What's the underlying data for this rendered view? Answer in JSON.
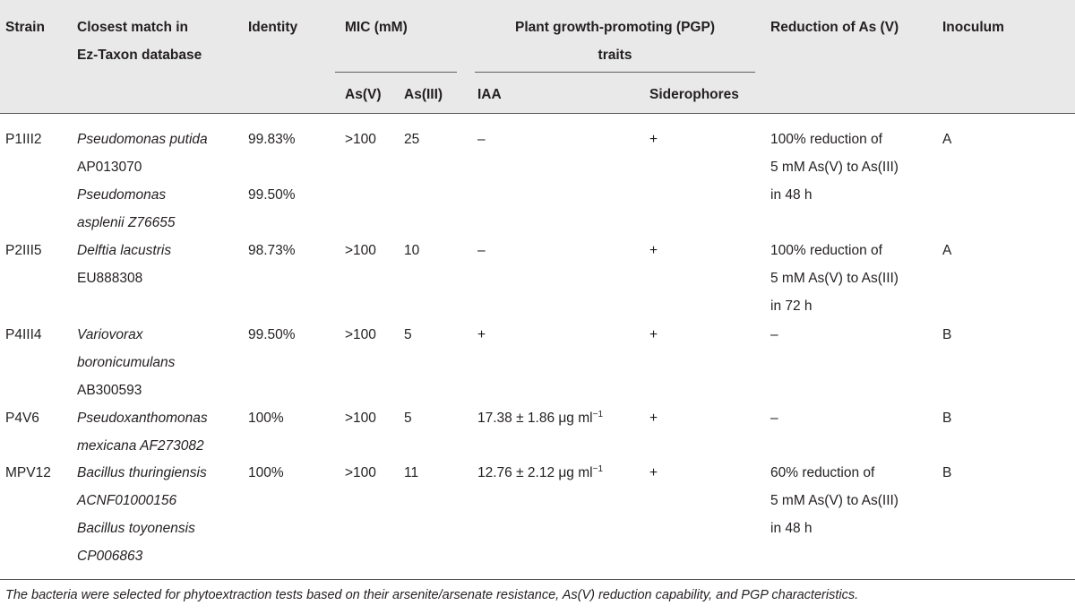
{
  "headers": {
    "strain": "Strain",
    "closest_match_l1": "Closest match in",
    "closest_match_l2": "Ez-Taxon database",
    "identity": "Identity",
    "mic": "MIC (mM)",
    "mic_asv": "As(V)",
    "mic_asiii": "As(III)",
    "pgp_l1": "Plant growth-promoting (PGP)",
    "pgp_l2": "traits",
    "iaa": "IAA",
    "siderophores": "Siderophores",
    "reduction": "Reduction of As (V)",
    "inoculum": "Inoculum"
  },
  "rows": [
    {
      "strain": "P1III2",
      "match_lines": [
        "Pseudomonas putida",
        "AP013070",
        "Pseudomonas",
        "asplenii Z76655"
      ],
      "identity_lines": [
        "99.83%",
        "",
        "99.50%"
      ],
      "asv": ">100",
      "asiii": "25",
      "iaa": "–",
      "iaa_unit": "",
      "iaa_sup": "",
      "siderophores": "+",
      "reduction_lines": [
        "100% reduction of",
        "5 mM As(V) to As(III)",
        "in 48 h"
      ],
      "inoculum": "A"
    },
    {
      "strain": "P2III5",
      "match_lines": [
        "Delftia lacustris",
        "EU888308"
      ],
      "identity_lines": [
        "98.73%"
      ],
      "asv": ">100",
      "asiii": "10",
      "iaa": "–",
      "iaa_unit": "",
      "iaa_sup": "",
      "siderophores": "+",
      "reduction_lines": [
        "100% reduction of",
        "5 mM As(V) to As(III)",
        "in 72 h"
      ],
      "inoculum": "A"
    },
    {
      "strain": "P4III4",
      "match_lines": [
        "Variovorax",
        "boronicumulans",
        "AB300593"
      ],
      "identity_lines": [
        "99.50%"
      ],
      "asv": ">100",
      "asiii": "5",
      "iaa": "+",
      "iaa_unit": "",
      "iaa_sup": "",
      "siderophores": "+",
      "reduction_lines": [
        "–"
      ],
      "inoculum": "B"
    },
    {
      "strain": "P4V6",
      "match_lines": [
        "Pseudoxanthomonas",
        "mexicana AF273082"
      ],
      "identity_lines": [
        "100%"
      ],
      "asv": ">100",
      "asiii": "5",
      "iaa": "17.38 ± 1.86 μg ml",
      "iaa_unit": "",
      "iaa_sup": "−1",
      "siderophores": "+",
      "reduction_lines": [
        "–"
      ],
      "inoculum": "B"
    },
    {
      "strain": "MPV12",
      "match_lines": [
        "Bacillus thuringiensis",
        "ACNF01000156",
        "Bacillus toyonensis",
        "CP006863"
      ],
      "identity_lines": [
        "100%"
      ],
      "asv": ">100",
      "asiii": "11",
      "iaa": "12.76 ± 2.12 μg ml",
      "iaa_unit": "",
      "iaa_sup": "−1",
      "siderophores": "+",
      "reduction_lines": [
        "60% reduction of",
        "5 mM As(V) to As(III)",
        "in 48 h"
      ],
      "inoculum": "B"
    }
  ],
  "footnote": "The bacteria were selected for phytoextraction tests based on their arsenite/arsenate resistance, As(V) reduction capability, and PGP characteristics."
}
